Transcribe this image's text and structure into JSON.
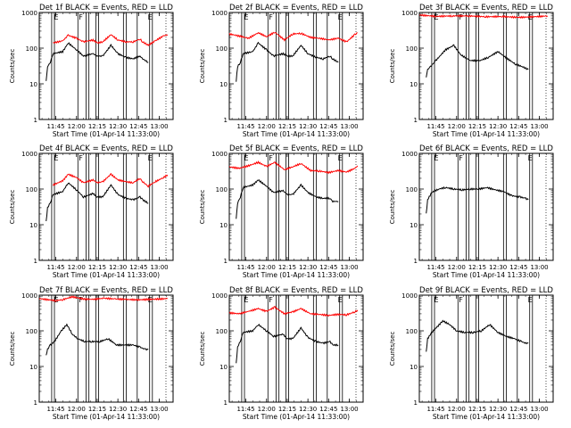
{
  "chart_data": [
    {
      "type": "line",
      "title": "Det 1f BLACK = Events, RED = LLD",
      "xlabel": "Start Time (01-Apr-14 11:33:00)",
      "ylabel": "Counts/sec",
      "y_scale": "log",
      "ylim": [
        1,
        1000
      ],
      "y_ticks": [
        "1",
        "10",
        "100",
        "1000"
      ],
      "x_ticks": [
        "11:45",
        "12:00",
        "12:15",
        "12:30",
        "12:45",
        "13:00"
      ],
      "markers": [
        {
          "time": "11:43",
          "label": "E"
        },
        {
          "time": "12:01",
          "label": "F"
        },
        {
          "time": "12:51",
          "label": "E"
        }
      ],
      "series": [
        {
          "color": "#ff0000",
          "x": [
            "11:43",
            "11:50",
            "11:54",
            "12:00",
            "12:05",
            "12:12",
            "12:15",
            "12:19",
            "12:25",
            "12:30",
            "12:36",
            "12:41",
            "12:46",
            "12:48",
            "12:52",
            "12:57",
            "13:03",
            "13:06"
          ],
          "y": [
            140,
            160,
            230,
            190,
            150,
            170,
            140,
            150,
            240,
            170,
            150,
            150,
            180,
            150,
            120,
            160,
            220,
            240
          ]
        },
        {
          "color": "#000000",
          "x": [
            "11:38",
            "11:39",
            "11:41",
            "11:43",
            "11:50",
            "11:54",
            "12:00",
            "12:05",
            "12:12",
            "12:15",
            "12:19",
            "12:25",
            "12:30",
            "12:36",
            "12:41",
            "12:46",
            "12:48",
            "12:52"
          ],
          "y": [
            12,
            30,
            40,
            70,
            80,
            140,
            90,
            60,
            70,
            60,
            60,
            120,
            70,
            55,
            50,
            60,
            50,
            40
          ]
        }
      ]
    },
    {
      "type": "line",
      "title": "Det 2f BLACK = Events, RED = LLD",
      "xlabel": "Start Time (01-Apr-14 11:33:00)",
      "ylabel": "Counts/sec",
      "y_scale": "log",
      "ylim": [
        1,
        1000
      ],
      "y_ticks": [
        "1",
        "10",
        "100",
        "1000"
      ],
      "x_ticks": [
        "11:45",
        "12:00",
        "12:15",
        "12:30",
        "12:45",
        "13:00"
      ],
      "markers": [
        {
          "time": "11:43",
          "label": "E"
        },
        {
          "time": "12:01",
          "label": "F"
        },
        {
          "time": "12:51",
          "label": "E"
        }
      ],
      "series": [
        {
          "color": "#ff0000",
          "x": [
            "11:33",
            "11:40",
            "11:47",
            "11:54",
            "12:00",
            "12:06",
            "12:13",
            "12:19",
            "12:25",
            "12:32",
            "12:38",
            "12:45",
            "12:52",
            "12:58",
            "13:04",
            "13:06"
          ],
          "y": [
            250,
            220,
            190,
            270,
            210,
            280,
            170,
            250,
            260,
            200,
            190,
            170,
            190,
            150,
            240,
            270
          ]
        },
        {
          "color": "#000000",
          "x": [
            "11:38",
            "11:39",
            "11:41",
            "11:43",
            "11:50",
            "11:54",
            "12:00",
            "12:05",
            "12:12",
            "12:15",
            "12:19",
            "12:25",
            "12:30",
            "12:36",
            "12:41",
            "12:46",
            "12:48",
            "12:52"
          ],
          "y": [
            12,
            30,
            40,
            70,
            80,
            140,
            90,
            60,
            70,
            60,
            60,
            120,
            70,
            55,
            50,
            60,
            50,
            40
          ]
        }
      ]
    },
    {
      "type": "line",
      "title": "Det 3f BLACK = Events, RED = LLD",
      "xlabel": "Start Time (01-Apr-14 11:33:00)",
      "ylabel": "Counts/sec",
      "y_scale": "log",
      "ylim": [
        1,
        1000
      ],
      "y_ticks": [
        "1",
        "10",
        "100",
        "1000"
      ],
      "x_ticks": [
        "11:45",
        "12:00",
        "12:15",
        "12:30",
        "12:45",
        "13:00"
      ],
      "markers": [
        {
          "time": "11:43",
          "label": "E"
        },
        {
          "time": "12:01",
          "label": "F"
        },
        {
          "time": "12:51",
          "label": "E"
        }
      ],
      "series": [
        {
          "color": "#ff0000",
          "x": [
            "11:33",
            "11:45",
            "11:57",
            "12:09",
            "12:21",
            "12:33",
            "12:45",
            "12:57",
            "13:06"
          ],
          "y": [
            850,
            780,
            800,
            800,
            760,
            770,
            730,
            760,
            800
          ]
        },
        {
          "color": "#000000",
          "x": [
            "11:38",
            "11:39",
            "11:41",
            "11:45",
            "11:52",
            "11:58",
            "12:03",
            "12:10",
            "12:17",
            "12:23",
            "12:30",
            "12:37",
            "12:43",
            "12:48",
            "12:52"
          ],
          "y": [
            15,
            25,
            30,
            45,
            90,
            120,
            65,
            45,
            45,
            55,
            80,
            50,
            35,
            30,
            25
          ]
        }
      ]
    },
    {
      "type": "line",
      "title": "Det 4f BLACK = Events, RED = LLD",
      "xlabel": "Start Time (01-Apr-14 11:33:00)",
      "ylabel": "Counts/sec",
      "y_scale": "log",
      "ylim": [
        1,
        1000
      ],
      "y_ticks": [
        "1",
        "10",
        "100",
        "1000"
      ],
      "x_ticks": [
        "11:45",
        "12:00",
        "12:15",
        "12:30",
        "12:45",
        "13:00"
      ],
      "markers": [
        {
          "time": "11:43",
          "label": "E"
        },
        {
          "time": "12:01",
          "label": "F"
        },
        {
          "time": "12:51",
          "label": "E"
        }
      ],
      "series": [
        {
          "color": "#ff0000",
          "x": [
            "11:43",
            "11:50",
            "11:54",
            "12:00",
            "12:05",
            "12:12",
            "12:15",
            "12:19",
            "12:25",
            "12:30",
            "12:36",
            "12:41",
            "12:46",
            "12:48",
            "12:52",
            "12:57",
            "13:03",
            "13:06"
          ],
          "y": [
            130,
            170,
            260,
            210,
            150,
            180,
            150,
            160,
            260,
            180,
            160,
            150,
            200,
            160,
            120,
            160,
            210,
            250
          ]
        },
        {
          "color": "#000000",
          "x": [
            "11:38",
            "11:39",
            "11:41",
            "11:43",
            "11:50",
            "11:54",
            "12:00",
            "12:05",
            "12:12",
            "12:15",
            "12:19",
            "12:25",
            "12:30",
            "12:36",
            "12:41",
            "12:46",
            "12:48",
            "12:52"
          ],
          "y": [
            12,
            30,
            40,
            70,
            85,
            150,
            95,
            60,
            75,
            60,
            60,
            130,
            70,
            55,
            50,
            60,
            50,
            40
          ]
        }
      ]
    },
    {
      "type": "line",
      "title": "Det 5f BLACK = Events, RED = LLD",
      "xlabel": "Start Time (01-Apr-14 11:33:00)",
      "ylabel": "Counts/sec",
      "y_scale": "log",
      "ylim": [
        1,
        1000
      ],
      "y_ticks": [
        "1",
        "10",
        "100",
        "1000"
      ],
      "x_ticks": [
        "11:45",
        "12:00",
        "12:15",
        "12:30",
        "12:45",
        "13:00"
      ],
      "markers": [
        {
          "time": "11:43",
          "label": "E"
        },
        {
          "time": "12:01",
          "label": "F"
        },
        {
          "time": "12:51",
          "label": "E"
        }
      ],
      "series": [
        {
          "color": "#ff0000",
          "x": [
            "11:33",
            "11:40",
            "11:47",
            "11:54",
            "12:00",
            "12:06",
            "12:13",
            "12:19",
            "12:25",
            "12:32",
            "12:38",
            "12:45",
            "12:52",
            "12:58",
            "13:04",
            "13:06"
          ],
          "y": [
            420,
            380,
            450,
            560,
            430,
            560,
            350,
            420,
            520,
            330,
            320,
            290,
            330,
            300,
            380,
            450
          ]
        },
        {
          "color": "#000000",
          "x": [
            "11:38",
            "11:39",
            "11:41",
            "11:43",
            "11:50",
            "11:54",
            "12:00",
            "12:05",
            "12:12",
            "12:15",
            "12:19",
            "12:25",
            "12:30",
            "12:36",
            "12:41",
            "12:46",
            "12:48",
            "12:52"
          ],
          "y": [
            15,
            40,
            60,
            110,
            130,
            180,
            120,
            80,
            90,
            70,
            70,
            130,
            80,
            60,
            55,
            55,
            45,
            45
          ]
        }
      ]
    },
    {
      "type": "line",
      "title": "Det 6f BLACK = Events, RED = LLD",
      "xlabel": "Start Time (01-Apr-14 11:33:00)",
      "ylabel": "Counts/sec",
      "y_scale": "log",
      "ylim": [
        1,
        1000
      ],
      "y_ticks": [
        "1",
        "10",
        "100",
        "1000"
      ],
      "x_ticks": [
        "11:45",
        "12:00",
        "12:15",
        "12:30",
        "12:45",
        "13:00"
      ],
      "markers": [
        {
          "time": "11:43",
          "label": "E"
        },
        {
          "time": "12:01",
          "label": "F"
        },
        {
          "time": "12:51",
          "label": "E"
        }
      ],
      "series": [
        {
          "color": "#000000",
          "x": [
            "11:38",
            "11:39",
            "11:42",
            "11:47",
            "11:52",
            "11:58",
            "12:04",
            "12:10",
            "12:16",
            "12:22",
            "12:28",
            "12:34",
            "12:40",
            "12:46",
            "12:50",
            "12:52"
          ],
          "y": [
            20,
            50,
            80,
            100,
            110,
            100,
            95,
            100,
            100,
            110,
            95,
            85,
            65,
            60,
            55,
            50
          ]
        }
      ]
    },
    {
      "type": "line",
      "title": "Det 7f BLACK = Events, RED = LLD",
      "xlabel": "Start Time (01-Apr-14 11:33:00)",
      "ylabel": "Counts/sec",
      "y_scale": "log",
      "ylim": [
        1,
        1000
      ],
      "y_ticks": [
        "1",
        "10",
        "100",
        "1000"
      ],
      "x_ticks": [
        "11:45",
        "12:00",
        "12:15",
        "12:30",
        "12:45",
        "13:00"
      ],
      "markers": [
        {
          "time": "11:43",
          "label": "E"
        },
        {
          "time": "12:01",
          "label": "F"
        },
        {
          "time": "12:51",
          "label": "E"
        }
      ],
      "series": [
        {
          "color": "#ff0000",
          "x": [
            "11:33",
            "11:45",
            "11:50",
            "11:57",
            "12:05",
            "12:12",
            "12:20",
            "12:28",
            "12:36",
            "12:44",
            "12:52",
            "13:00",
            "13:06"
          ],
          "y": [
            800,
            700,
            750,
            900,
            780,
            760,
            820,
            780,
            760,
            740,
            760,
            780,
            800
          ]
        },
        {
          "color": "#000000",
          "x": [
            "11:38",
            "11:39",
            "11:41",
            "11:44",
            "11:49",
            "11:53",
            "11:57",
            "12:01",
            "12:06",
            "12:11",
            "12:17",
            "12:23",
            "12:29",
            "12:35",
            "12:41",
            "12:46",
            "12:50",
            "12:52"
          ],
          "y": [
            20,
            30,
            40,
            50,
            100,
            150,
            80,
            60,
            50,
            50,
            50,
            60,
            40,
            40,
            40,
            35,
            30,
            30
          ]
        }
      ]
    },
    {
      "type": "line",
      "title": "Det 8f BLACK = Events, RED = LLD",
      "xlabel": "Start Time (01-Apr-14 11:33:00)",
      "ylabel": "Counts/sec",
      "y_scale": "log",
      "ylim": [
        1,
        1000
      ],
      "y_ticks": [
        "1",
        "10",
        "100",
        "1000"
      ],
      "x_ticks": [
        "11:45",
        "12:00",
        "12:15",
        "12:30",
        "12:45",
        "13:00"
      ],
      "markers": [
        {
          "time": "11:43",
          "label": "E"
        },
        {
          "time": "12:01",
          "label": "F"
        },
        {
          "time": "12:51",
          "label": "E"
        }
      ],
      "series": [
        {
          "color": "#ff0000",
          "x": [
            "11:33",
            "11:40",
            "11:47",
            "11:54",
            "12:00",
            "12:06",
            "12:13",
            "12:19",
            "12:25",
            "12:32",
            "12:38",
            "12:45",
            "12:52",
            "12:58",
            "13:04",
            "13:06"
          ],
          "y": [
            320,
            300,
            350,
            420,
            350,
            460,
            300,
            340,
            420,
            300,
            290,
            270,
            290,
            280,
            340,
            380
          ]
        },
        {
          "color": "#000000",
          "x": [
            "11:38",
            "11:39",
            "11:41",
            "11:43",
            "11:50",
            "11:54",
            "12:00",
            "12:05",
            "12:12",
            "12:15",
            "12:19",
            "12:25",
            "12:30",
            "12:36",
            "12:41",
            "12:46",
            "12:48",
            "12:52"
          ],
          "y": [
            12,
            35,
            50,
            90,
            100,
            150,
            100,
            70,
            80,
            60,
            60,
            120,
            65,
            50,
            45,
            50,
            40,
            40
          ]
        }
      ]
    },
    {
      "type": "line",
      "title": "Det 9f BLACK = Events, RED = LLD",
      "xlabel": "Start Time (01-Apr-14 11:33:00)",
      "ylabel": "Counts/sec",
      "y_scale": "log",
      "ylim": [
        1,
        1000
      ],
      "y_ticks": [
        "1",
        "10",
        "100",
        "1000"
      ],
      "x_ticks": [
        "11:45",
        "12:00",
        "12:15",
        "12:30",
        "12:45",
        "13:00"
      ],
      "markers": [
        {
          "time": "11:43",
          "label": "E"
        },
        {
          "time": "12:01",
          "label": "F"
        },
        {
          "time": "12:51",
          "label": "E"
        }
      ],
      "series": [
        {
          "color": "#000000",
          "x": [
            "11:38",
            "11:39",
            "11:42",
            "11:46",
            "11:50",
            "11:55",
            "12:00",
            "12:06",
            "12:12",
            "12:18",
            "12:24",
            "12:30",
            "12:36",
            "12:42",
            "12:47",
            "12:50",
            "12:52"
          ],
          "y": [
            25,
            60,
            90,
            130,
            190,
            150,
            100,
            90,
            90,
            100,
            150,
            90,
            70,
            60,
            50,
            45,
            45
          ]
        }
      ]
    }
  ]
}
